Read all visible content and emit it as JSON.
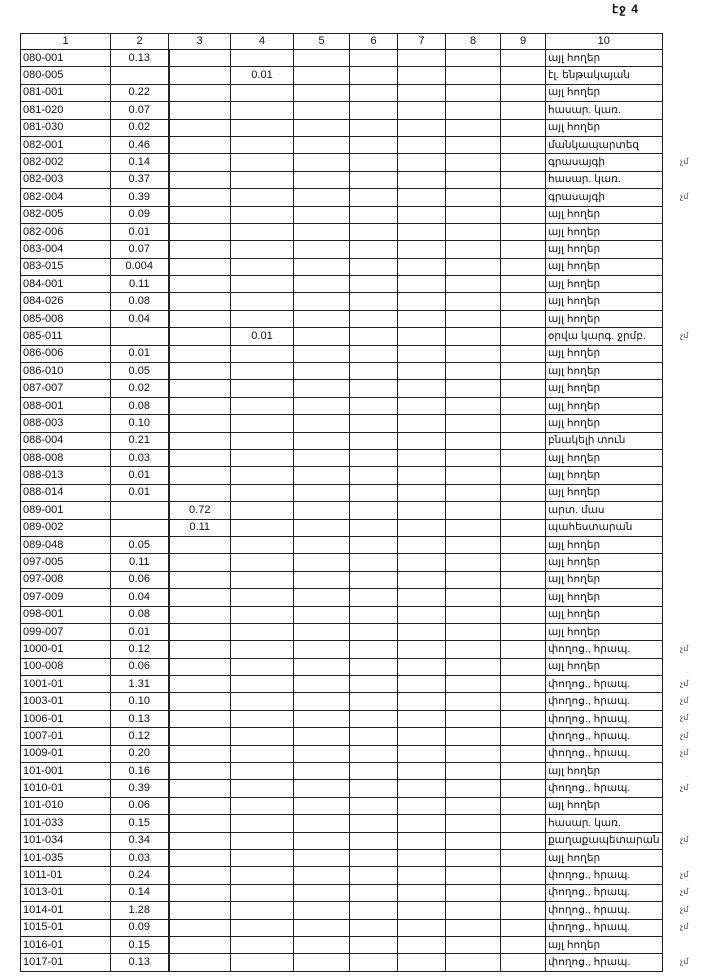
{
  "page_label": "էջ 4",
  "headers": [
    "1",
    "2",
    "3",
    "4",
    "5",
    "6",
    "7",
    "8",
    "9",
    "10"
  ],
  "margin_mark": "չմ",
  "rows": [
    {
      "code": "080-001",
      "c2": "0.13",
      "c3": "",
      "c4": "",
      "use": "այլ հողեր",
      "mark": false
    },
    {
      "code": "080-005",
      "c2": "",
      "c3": "",
      "c4": "0.01",
      "use": "էլ. ենթակայան",
      "mark": false
    },
    {
      "code": "081-001",
      "c2": "0.22",
      "c3": "",
      "c4": "",
      "use": "այլ հողեր",
      "mark": false
    },
    {
      "code": "081-020",
      "c2": "0.07",
      "c3": "",
      "c4": "",
      "use": "հասար. կառ.",
      "mark": false
    },
    {
      "code": "081-030",
      "c2": "0.02",
      "c3": "",
      "c4": "",
      "use": "այլ հողեր",
      "mark": false
    },
    {
      "code": "082-001",
      "c2": "0.46",
      "c3": "",
      "c4": "",
      "use": "մանկապարտեզ",
      "mark": false
    },
    {
      "code": "082-002",
      "c2": "0.14",
      "c3": "",
      "c4": "",
      "use": "գրասայգի",
      "mark": true
    },
    {
      "code": "082-003",
      "c2": "0.37",
      "c3": "",
      "c4": "",
      "use": "հասար. կառ.",
      "mark": false
    },
    {
      "code": "082-004",
      "c2": "0.39",
      "c3": "",
      "c4": "",
      "use": "գրասայգի",
      "mark": true
    },
    {
      "code": "082-005",
      "c2": "0.09",
      "c3": "",
      "c4": "",
      "use": "այլ հողեր",
      "mark": false
    },
    {
      "code": "082-006",
      "c2": "0.01",
      "c3": "",
      "c4": "",
      "use": "այլ հողեր",
      "mark": false
    },
    {
      "code": "083-004",
      "c2": "0.07",
      "c3": "",
      "c4": "",
      "use": "այլ հողեր",
      "mark": false
    },
    {
      "code": "083-015",
      "c2": "0.004",
      "c3": "",
      "c4": "",
      "use": "այլ հողեր",
      "mark": false
    },
    {
      "code": "084-001",
      "c2": "0.11",
      "c3": "",
      "c4": "",
      "use": "այլ հողեր",
      "mark": false
    },
    {
      "code": "084-026",
      "c2": "0.08",
      "c3": "",
      "c4": "",
      "use": "այլ հողեր",
      "mark": false
    },
    {
      "code": "085-008",
      "c2": "0.04",
      "c3": "",
      "c4": "",
      "use": "այլ հողեր",
      "mark": false
    },
    {
      "code": "085-011",
      "c2": "",
      "c3": "",
      "c4": "0.01",
      "use": "օրվա կարգ. ջրմբ.",
      "mark": true
    },
    {
      "code": "086-006",
      "c2": "0.01",
      "c3": "",
      "c4": "",
      "use": "այլ հողեր",
      "mark": false
    },
    {
      "code": "086-010",
      "c2": "0.05",
      "c3": "",
      "c4": "",
      "use": "այլ հողեր",
      "mark": false
    },
    {
      "code": "087-007",
      "c2": "0.02",
      "c3": "",
      "c4": "",
      "use": "այլ հողեր",
      "mark": false
    },
    {
      "code": "088-001",
      "c2": "0.08",
      "c3": "",
      "c4": "",
      "use": "այլ հողեր",
      "mark": false
    },
    {
      "code": "088-003",
      "c2": "0.10",
      "c3": "",
      "c4": "",
      "use": "այլ հողեր",
      "mark": false
    },
    {
      "code": "088-004",
      "c2": "0.21",
      "c3": "",
      "c4": "",
      "use": "բնակելի տուն",
      "mark": false
    },
    {
      "code": "088-008",
      "c2": "0.03",
      "c3": "",
      "c4": "",
      "use": "այլ հողեր",
      "mark": false
    },
    {
      "code": "088-013",
      "c2": "0.01",
      "c3": "",
      "c4": "",
      "use": "այլ հողեր",
      "mark": false
    },
    {
      "code": "088-014",
      "c2": "0.01",
      "c3": "",
      "c4": "",
      "use": "այլ հողեր",
      "mark": false
    },
    {
      "code": "089-001",
      "c2": "",
      "c3": "0.72",
      "c4": "",
      "use": "արտ. մաս",
      "mark": false
    },
    {
      "code": "089-002",
      "c2": "",
      "c3": "0.11",
      "c4": "",
      "use": "պահեստարան",
      "mark": false
    },
    {
      "code": "089-048",
      "c2": "0.05",
      "c3": "",
      "c4": "",
      "use": "այլ հողեր",
      "mark": false
    },
    {
      "code": "097-005",
      "c2": "0.11",
      "c3": "",
      "c4": "",
      "use": "այլ հողեր",
      "mark": false
    },
    {
      "code": "097-008",
      "c2": "0.06",
      "c3": "",
      "c4": "",
      "use": "այլ հողեր",
      "mark": false
    },
    {
      "code": "097-009",
      "c2": "0.04",
      "c3": "",
      "c4": "",
      "use": "այլ հողեր",
      "mark": false
    },
    {
      "code": "098-001",
      "c2": "0.08",
      "c3": "",
      "c4": "",
      "use": "այլ հողեր",
      "mark": false
    },
    {
      "code": "099-007",
      "c2": "0.01",
      "c3": "",
      "c4": "",
      "use": "այլ հողեր",
      "mark": false
    },
    {
      "code": "1000-01",
      "c2": "0.12",
      "c3": "",
      "c4": "",
      "use": "փողոց., հրապ.",
      "mark": true
    },
    {
      "code": "100-008",
      "c2": "0.06",
      "c3": "",
      "c4": "",
      "use": "այլ հողեր",
      "mark": false
    },
    {
      "code": "1001-01",
      "c2": "1.31",
      "c3": "",
      "c4": "",
      "use": "փողոց., հրապ.",
      "mark": true
    },
    {
      "code": "1003-01",
      "c2": "0.10",
      "c3": "",
      "c4": "",
      "use": "փողոց., հրապ.",
      "mark": true
    },
    {
      "code": "1006-01",
      "c2": "0.13",
      "c3": "",
      "c4": "",
      "use": "փողոց., հրապ.",
      "mark": true
    },
    {
      "code": "1007-01",
      "c2": "0.12",
      "c3": "",
      "c4": "",
      "use": "փողոց., հրապ.",
      "mark": true
    },
    {
      "code": "1009-01",
      "c2": "0.20",
      "c3": "",
      "c4": "",
      "use": "փողոց., հրապ.",
      "mark": true
    },
    {
      "code": "101-001",
      "c2": "0.16",
      "c3": "",
      "c4": "",
      "use": "այլ հողեր",
      "mark": false
    },
    {
      "code": "1010-01",
      "c2": "0.39",
      "c3": "",
      "c4": "",
      "use": "փողոց., հրապ.",
      "mark": true
    },
    {
      "code": "101-010",
      "c2": "0.06",
      "c3": "",
      "c4": "",
      "use": "այլ հողեր",
      "mark": false
    },
    {
      "code": "101-033",
      "c2": "0.15",
      "c3": "",
      "c4": "",
      "use": "հասար. կառ.",
      "mark": false
    },
    {
      "code": "101-034",
      "c2": "0.34",
      "c3": "",
      "c4": "",
      "use": "քաղաքապետարան",
      "mark": true
    },
    {
      "code": "101-035",
      "c2": "0.03",
      "c3": "",
      "c4": "",
      "use": "այլ հողեր",
      "mark": false
    },
    {
      "code": "1011-01",
      "c2": "0.24",
      "c3": "",
      "c4": "",
      "use": "փողոց., հրապ.",
      "mark": true
    },
    {
      "code": "1013-01",
      "c2": "0.14",
      "c3": "",
      "c4": "",
      "use": "փողոց., հրապ.",
      "mark": true
    },
    {
      "code": "1014-01",
      "c2": "1.28",
      "c3": "",
      "c4": "",
      "use": "փողոց., հրապ.",
      "mark": true
    },
    {
      "code": "1015-01",
      "c2": "0.09",
      "c3": "",
      "c4": "",
      "use": "փողոց., հրապ.",
      "mark": true
    },
    {
      "code": "1016-01",
      "c2": "0.15",
      "c3": "",
      "c4": "",
      "use": "այլ հողեր",
      "mark": false
    },
    {
      "code": "1017-01",
      "c2": "0.13",
      "c3": "",
      "c4": "",
      "use": "փողոց., հրապ.",
      "mark": true
    }
  ]
}
